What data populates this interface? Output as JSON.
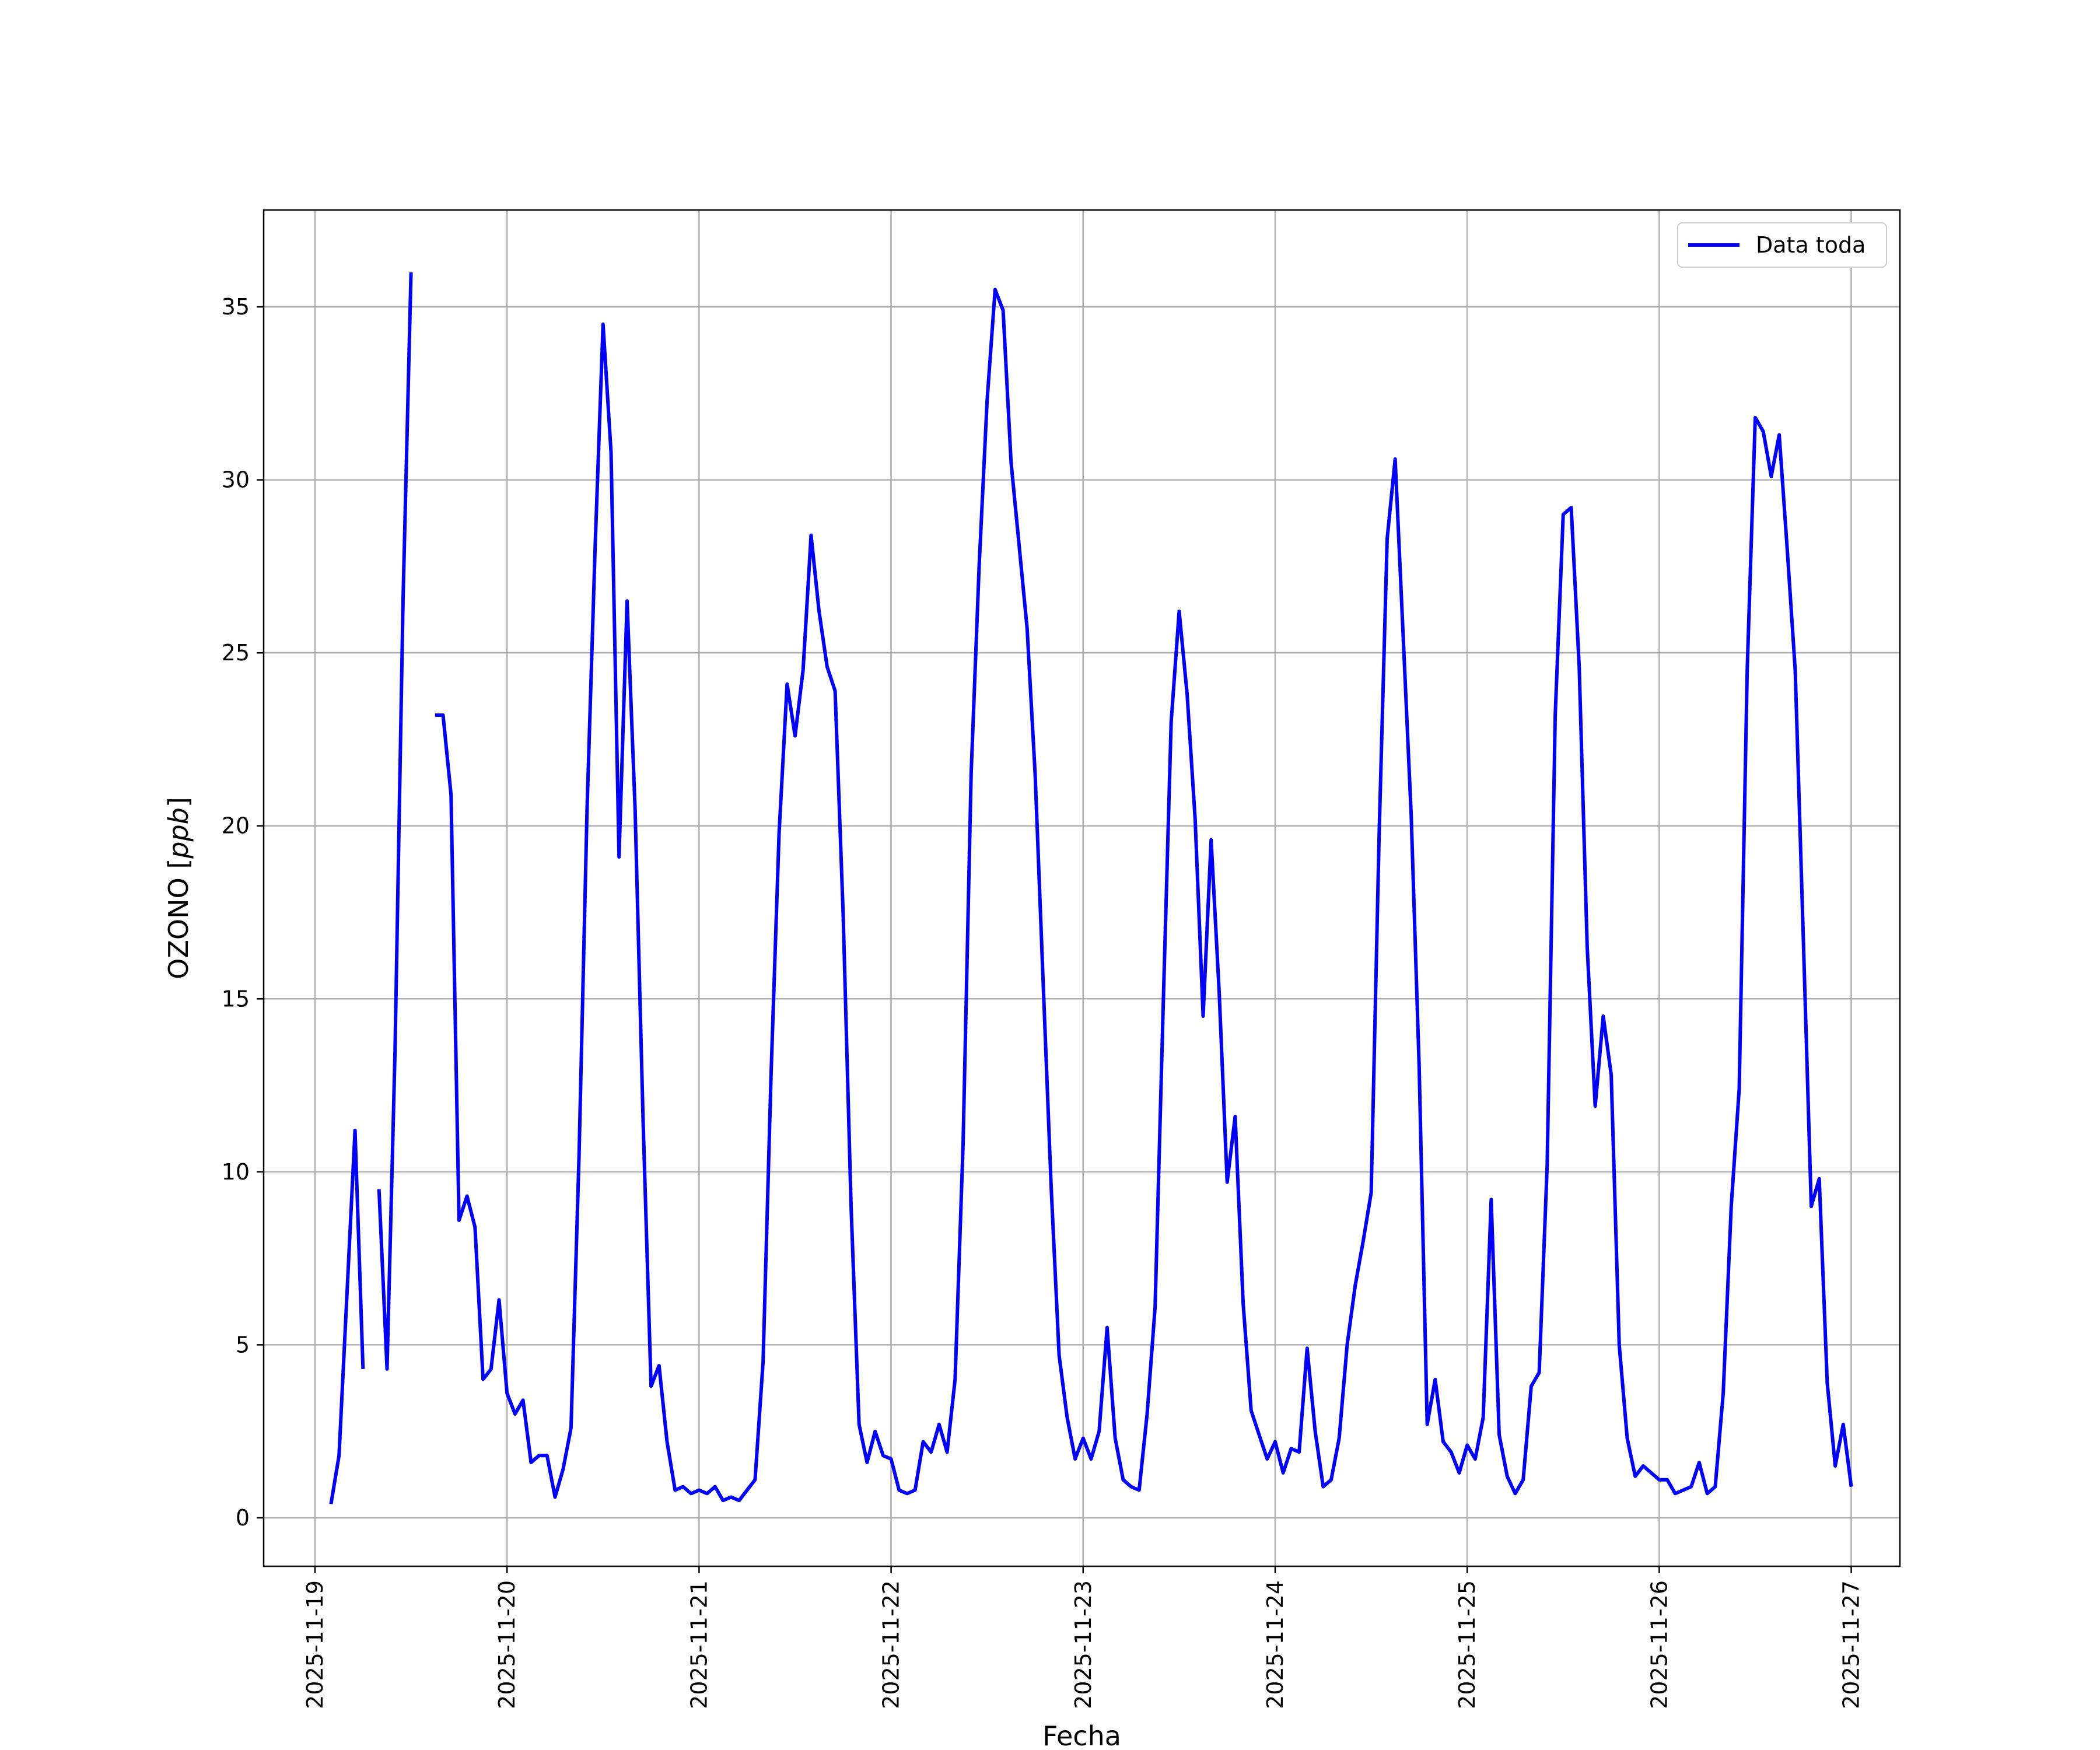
{
  "chart_data": {
    "type": "line",
    "title": "",
    "xlabel": "Fecha",
    "ylabel": "OZONO [ppb]",
    "ylim": [
      -1.4,
      37.8
    ],
    "xlim": [
      "2025-11-18 17:35",
      "2025-11-27 06:05"
    ],
    "grid": true,
    "legend": {
      "position": "top-right",
      "entries": [
        "Data toda"
      ]
    },
    "xticks": [
      "2025-11-19",
      "2025-11-20",
      "2025-11-21",
      "2025-11-22",
      "2025-11-23",
      "2025-11-24",
      "2025-11-25",
      "2025-11-26",
      "2025-11-27"
    ],
    "yticks": [
      0,
      5,
      10,
      15,
      20,
      25,
      30,
      35
    ],
    "series": [
      {
        "name": "Data toda",
        "color": "#0000ff",
        "x": [
          "2025-11-19 02:00",
          "2025-11-19 03:00",
          "2025-11-19 04:00",
          "2025-11-19 05:00",
          "2025-11-19 06:00",
          "2025-11-19 07:00",
          "2025-11-19 08:00",
          "2025-11-19 09:00",
          "2025-11-19 10:00",
          "2025-11-19 11:00",
          "2025-11-19 12:00",
          "2025-11-19 13:00",
          "2025-11-19 14:00",
          "2025-11-19 15:00",
          "2025-11-19 16:00",
          "2025-11-19 17:00",
          "2025-11-19 18:00",
          "2025-11-19 19:00",
          "2025-11-19 20:00",
          "2025-11-19 21:00",
          "2025-11-19 22:00",
          "2025-11-19 23:00",
          "2025-11-20 00:00",
          "2025-11-20 01:00",
          "2025-11-20 02:00",
          "2025-11-20 03:00",
          "2025-11-20 04:00",
          "2025-11-20 05:00",
          "2025-11-20 06:00",
          "2025-11-20 07:00",
          "2025-11-20 08:00",
          "2025-11-20 09:00",
          "2025-11-20 10:00",
          "2025-11-20 11:00",
          "2025-11-20 12:00",
          "2025-11-20 13:00",
          "2025-11-20 14:00",
          "2025-11-20 15:00",
          "2025-11-20 16:00",
          "2025-11-20 17:00",
          "2025-11-20 18:00",
          "2025-11-20 19:00",
          "2025-11-20 20:00",
          "2025-11-20 21:00",
          "2025-11-20 22:00",
          "2025-11-20 23:00",
          "2025-11-21 00:00",
          "2025-11-21 01:00",
          "2025-11-21 02:00",
          "2025-11-21 03:00",
          "2025-11-21 04:00",
          "2025-11-21 05:00",
          "2025-11-21 06:00",
          "2025-11-21 07:00",
          "2025-11-21 08:00",
          "2025-11-21 09:00",
          "2025-11-21 10:00",
          "2025-11-21 11:00",
          "2025-11-21 12:00",
          "2025-11-21 13:00",
          "2025-11-21 14:00",
          "2025-11-21 15:00",
          "2025-11-21 16:00",
          "2025-11-21 17:00",
          "2025-11-21 18:00",
          "2025-11-21 19:00",
          "2025-11-21 20:00",
          "2025-11-21 21:00",
          "2025-11-21 22:00",
          "2025-11-21 23:00",
          "2025-11-22 00:00",
          "2025-11-22 01:00",
          "2025-11-22 02:00",
          "2025-11-22 03:00",
          "2025-11-22 04:00",
          "2025-11-22 05:00",
          "2025-11-22 06:00",
          "2025-11-22 07:00",
          "2025-11-22 08:00",
          "2025-11-22 09:00",
          "2025-11-22 10:00",
          "2025-11-22 11:00",
          "2025-11-22 12:00",
          "2025-11-22 13:00",
          "2025-11-22 14:00",
          "2025-11-22 15:00",
          "2025-11-22 16:00",
          "2025-11-22 17:00",
          "2025-11-22 18:00",
          "2025-11-22 19:00",
          "2025-11-22 20:00",
          "2025-11-22 21:00",
          "2025-11-22 22:00",
          "2025-11-22 23:00",
          "2025-11-23 00:00",
          "2025-11-23 01:00",
          "2025-11-23 02:00",
          "2025-11-23 03:00",
          "2025-11-23 04:00",
          "2025-11-23 05:00",
          "2025-11-23 06:00",
          "2025-11-23 07:00",
          "2025-11-23 08:00",
          "2025-11-23 09:00",
          "2025-11-23 10:00",
          "2025-11-23 11:00",
          "2025-11-23 12:00",
          "2025-11-23 13:00",
          "2025-11-23 14:00",
          "2025-11-23 15:00",
          "2025-11-23 16:00",
          "2025-11-23 17:00",
          "2025-11-23 18:00",
          "2025-11-23 19:00",
          "2025-11-23 20:00",
          "2025-11-23 21:00",
          "2025-11-23 22:00",
          "2025-11-23 23:00",
          "2025-11-24 00:00",
          "2025-11-24 01:00",
          "2025-11-24 02:00",
          "2025-11-24 03:00",
          "2025-11-24 04:00",
          "2025-11-24 05:00",
          "2025-11-24 06:00",
          "2025-11-24 07:00",
          "2025-11-24 08:00",
          "2025-11-24 09:00",
          "2025-11-24 10:00",
          "2025-11-24 11:00",
          "2025-11-24 12:00",
          "2025-11-24 13:00",
          "2025-11-24 14:00",
          "2025-11-24 15:00",
          "2025-11-24 16:00",
          "2025-11-24 17:00",
          "2025-11-24 18:00",
          "2025-11-24 19:00",
          "2025-11-24 20:00",
          "2025-11-24 21:00",
          "2025-11-24 22:00",
          "2025-11-24 23:00",
          "2025-11-25 00:00",
          "2025-11-25 01:00",
          "2025-11-25 02:00",
          "2025-11-25 03:00",
          "2025-11-25 04:00",
          "2025-11-25 05:00",
          "2025-11-25 06:00",
          "2025-11-25 07:00",
          "2025-11-25 08:00",
          "2025-11-25 09:00",
          "2025-11-25 10:00",
          "2025-11-25 11:00",
          "2025-11-25 12:00",
          "2025-11-25 13:00",
          "2025-11-25 14:00",
          "2025-11-25 15:00",
          "2025-11-25 16:00",
          "2025-11-25 17:00",
          "2025-11-25 18:00",
          "2025-11-25 19:00",
          "2025-11-25 20:00",
          "2025-11-25 21:00",
          "2025-11-25 22:00",
          "2025-11-25 23:00",
          "2025-11-26 00:00",
          "2025-11-26 01:00",
          "2025-11-26 02:00",
          "2025-11-26 03:00",
          "2025-11-26 04:00",
          "2025-11-26 05:00",
          "2025-11-26 06:00",
          "2025-11-26 07:00",
          "2025-11-26 08:00",
          "2025-11-26 09:00",
          "2025-11-26 10:00",
          "2025-11-26 11:00",
          "2025-11-26 12:00",
          "2025-11-26 13:00",
          "2025-11-26 14:00",
          "2025-11-26 15:00",
          "2025-11-26 16:00",
          "2025-11-26 17:00",
          "2025-11-26 18:00",
          "2025-11-26 19:00",
          "2025-11-26 20:00",
          "2025-11-26 21:00",
          "2025-11-26 22:00",
          "2025-11-26 23:00",
          "2025-11-27 00:00"
        ],
        "values": [
          0.4,
          1.8,
          6.5,
          11.2,
          4.3,
          null,
          9.5,
          4.3,
          13.5,
          26.5,
          36.0,
          null,
          null,
          23.2,
          23.2,
          20.9,
          8.6,
          9.3,
          8.4,
          4.0,
          4.3,
          6.3,
          3.6,
          3.0,
          3.4,
          1.6,
          1.8,
          1.8,
          0.6,
          1.4,
          2.6,
          10.5,
          20.5,
          28.0,
          34.5,
          30.8,
          19.1,
          26.5,
          20.5,
          11.5,
          3.8,
          4.4,
          2.2,
          0.8,
          0.9,
          0.7,
          0.8,
          0.7,
          0.9,
          0.5,
          0.6,
          0.5,
          0.8,
          1.1,
          4.5,
          12.8,
          19.8,
          24.1,
          22.6,
          24.5,
          28.4,
          26.2,
          24.6,
          23.9,
          17.5,
          9.0,
          2.7,
          1.6,
          2.5,
          1.8,
          1.7,
          0.8,
          0.7,
          0.8,
          2.2,
          1.9,
          2.7,
          1.9,
          4.0,
          10.8,
          21.5,
          27.5,
          32.3,
          35.5,
          34.9,
          30.5,
          28.1,
          25.7,
          21.5,
          15.5,
          9.6,
          4.7,
          2.9,
          1.7,
          2.3,
          1.7,
          2.5,
          5.5,
          2.3,
          1.1,
          0.9,
          0.8,
          3.0,
          6.1,
          14.7,
          23.0,
          26.2,
          23.8,
          20.2,
          14.5,
          19.6,
          15.2,
          9.7,
          11.6,
          6.2,
          3.1,
          2.4,
          1.7,
          2.2,
          1.3,
          2.0,
          1.9,
          4.9,
          2.5,
          0.9,
          1.1,
          2.3,
          5.0,
          6.7,
          8.0,
          9.4,
          19.8,
          28.3,
          30.6,
          25.5,
          20.3,
          13.0,
          2.7,
          4.0,
          2.2,
          1.9,
          1.3,
          2.1,
          1.7,
          2.9,
          9.2,
          2.4,
          1.2,
          0.7,
          1.1,
          3.8,
          4.2,
          10.2,
          23.2,
          29.0,
          29.2,
          24.6,
          16.5,
          11.9,
          14.5,
          12.8,
          5.0,
          2.3,
          1.2,
          1.5,
          1.3,
          1.1,
          1.1,
          0.7,
          0.8,
          0.9,
          1.6,
          0.7,
          0.9,
          3.6,
          9.0,
          12.4,
          24.5,
          31.8,
          31.4,
          30.1,
          31.3,
          28.0,
          24.5,
          16.8,
          9.0,
          9.8,
          3.9,
          1.5,
          2.7,
          0.9
        ]
      }
    ]
  }
}
